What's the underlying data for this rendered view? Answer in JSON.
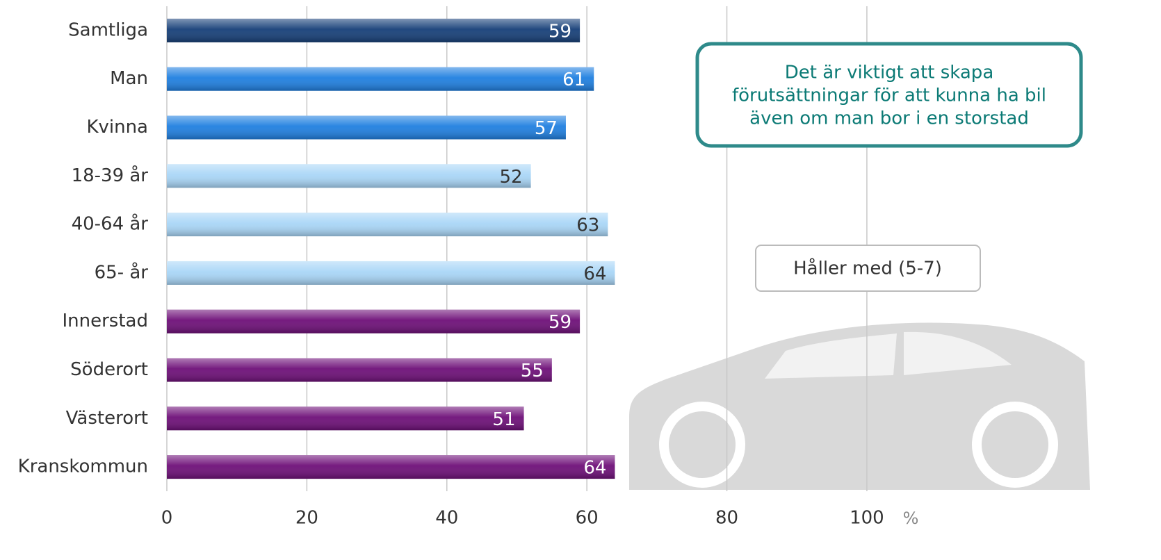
{
  "chart_data": {
    "type": "bar",
    "orientation": "horizontal",
    "categories": [
      "Samtliga",
      "Man",
      "Kvinna",
      "18-39 år",
      "40-64 år",
      "65- år",
      "Innerstad",
      "Söderort",
      "Västerort",
      "Kranskommun"
    ],
    "series": [
      {
        "name": "Håller med (5-7)",
        "values": [
          59,
          61,
          57,
          52,
          63,
          64,
          59,
          55,
          51,
          64
        ],
        "colors": [
          "#163f78",
          "#1f7fe0",
          "#1f7fe0",
          "#a9d6f7",
          "#a9d6f7",
          "#a9d6f7",
          "#6e0f78",
          "#6e0f78",
          "#6e0f78",
          "#6e0f78"
        ]
      }
    ],
    "xlim": [
      0,
      130
    ],
    "xticks": [
      0,
      20,
      40,
      60,
      80,
      100
    ],
    "x_unit": "%",
    "grid": true,
    "annotation": [
      "Det är viktigt att skapa",
      "förutsättningar för att kunna ha bil",
      "även om man bor i en storstad"
    ]
  }
}
